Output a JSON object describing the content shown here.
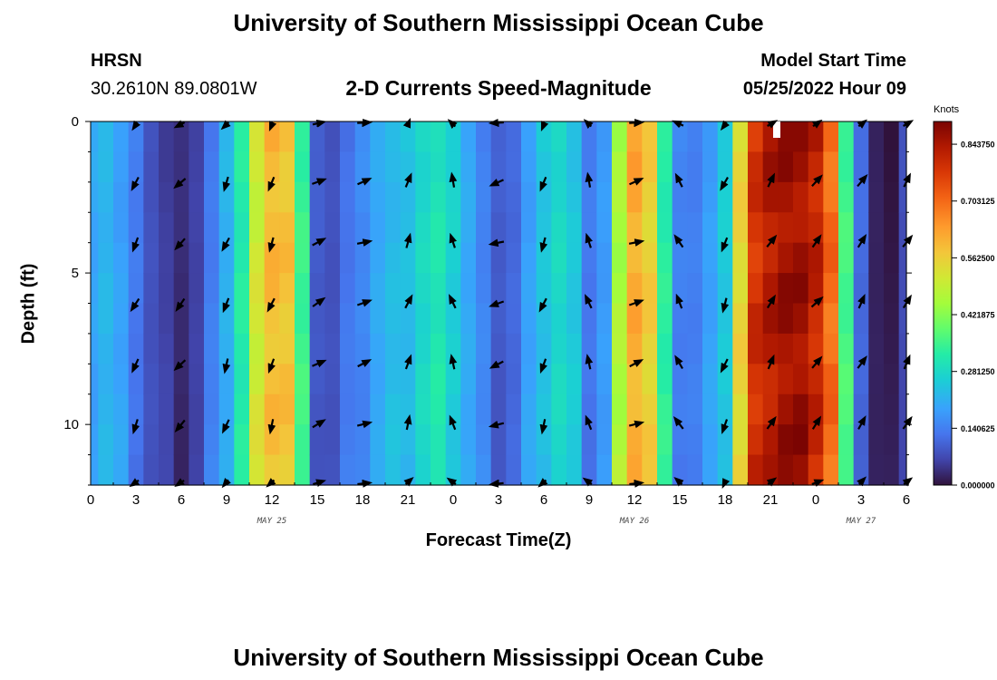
{
  "page": {
    "title_top": "University of Southern Mississippi Ocean Cube",
    "title_bottom": "University of Southern Mississippi Ocean Cube",
    "station": "HRSN",
    "coords": "30.2610N  89.0801W",
    "plot_title": "2-D Currents Speed-Magnitude",
    "model_label": "Model Start Time",
    "model_time": "05/25/2022 Hour 09"
  },
  "chart_data": {
    "type": "heatmap",
    "title": "2-D Currents Speed-Magnitude",
    "xlabel": "Forecast Time(Z)",
    "ylabel": "Depth (ft)",
    "x_ticks": [
      "0",
      "3",
      "6",
      "9",
      "12",
      "15",
      "18",
      "21",
      "0",
      "3",
      "6",
      "9",
      "12",
      "15",
      "18",
      "21",
      "0",
      "3",
      "6"
    ],
    "x_hours": [
      0,
      3,
      6,
      9,
      12,
      15,
      18,
      21,
      24,
      27,
      30,
      33,
      36,
      39,
      42,
      45,
      48,
      51,
      54
    ],
    "date_labels": [
      {
        "label": "MAY 25",
        "hour": 12
      },
      {
        "label": "MAY 26",
        "hour": 36
      },
      {
        "label": "MAY 27",
        "hour": 51
      }
    ],
    "y_ticks": [
      "0",
      "5",
      "10"
    ],
    "y_values": [
      0,
      5,
      10
    ],
    "ylim": [
      0,
      12
    ],
    "xlim": [
      0,
      54
    ],
    "colorbar": {
      "label": "Knots",
      "ticks": [
        "0.843750",
        "0.703125",
        "0.562500",
        "0.421875",
        "0.281250",
        "0.140625",
        "0.000000"
      ],
      "tick_values": [
        0.84375,
        0.703125,
        0.5625,
        0.421875,
        0.28125,
        0.140625,
        0.0
      ],
      "range": [
        0,
        0.9
      ]
    },
    "speed_profile": {
      "hours": [
        0,
        1,
        2,
        3,
        4,
        5,
        6,
        7,
        8,
        9,
        10,
        11,
        12,
        13,
        14,
        15,
        16,
        17,
        18,
        19,
        20,
        21,
        22,
        23,
        24,
        25,
        26,
        27,
        28,
        29,
        30,
        31,
        32,
        33,
        34,
        35,
        36,
        37,
        38,
        39,
        40,
        41,
        42,
        43,
        44,
        45,
        46,
        47,
        48,
        49,
        50,
        51,
        52,
        53,
        54
      ],
      "knots": [
        0.2,
        0.22,
        0.18,
        0.14,
        0.08,
        0.05,
        0.04,
        0.06,
        0.13,
        0.22,
        0.32,
        0.5,
        0.6,
        0.58,
        0.34,
        0.1,
        0.08,
        0.12,
        0.16,
        0.2,
        0.22,
        0.24,
        0.28,
        0.3,
        0.27,
        0.2,
        0.14,
        0.1,
        0.11,
        0.18,
        0.25,
        0.28,
        0.24,
        0.14,
        0.18,
        0.45,
        0.62,
        0.56,
        0.32,
        0.15,
        0.14,
        0.18,
        0.26,
        0.55,
        0.78,
        0.84,
        0.86,
        0.85,
        0.82,
        0.7,
        0.35,
        0.12,
        0.02,
        0.0,
        0.08
      ]
    },
    "vectors": {
      "hours": [
        3,
        6,
        9,
        12,
        15,
        18,
        21,
        24,
        27,
        30,
        33,
        36,
        39,
        42,
        45,
        48,
        51,
        54
      ],
      "depths": [
        0,
        2,
        4,
        6,
        8,
        10,
        12
      ],
      "dir_deg": [
        205,
        220,
        200,
        200,
        60,
        70,
        20,
        340,
        250,
        200,
        340,
        70,
        330,
        200,
        30,
        40,
        30,
        30
      ]
    },
    "grid": false
  }
}
